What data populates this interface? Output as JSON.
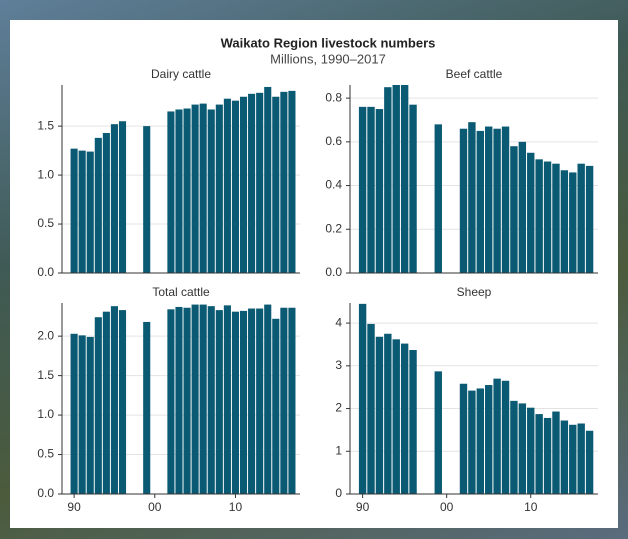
{
  "title": "Waikato Region livestock numbers",
  "subtitle": "Millions, 1990–2017",
  "chart_data": [
    {
      "type": "bar",
      "title": "Dairy cattle",
      "color": "#0b5a73",
      "x": [
        1990,
        1991,
        1992,
        1993,
        1994,
        1995,
        1996,
        1997,
        1998,
        1999,
        2000,
        2001,
        2002,
        2003,
        2004,
        2005,
        2006,
        2007,
        2008,
        2009,
        2010,
        2011,
        2012,
        2013,
        2014,
        2015,
        2016,
        2017
      ],
      "values": [
        1.27,
        1.25,
        1.24,
        1.38,
        1.43,
        1.52,
        1.55,
        null,
        null,
        1.5,
        null,
        null,
        1.65,
        1.67,
        1.68,
        1.72,
        1.73,
        1.67,
        1.72,
        1.78,
        1.76,
        1.8,
        1.83,
        1.84,
        1.9,
        1.8,
        1.85,
        1.86
      ],
      "xlim": [
        1988.5,
        2018
      ],
      "ylim": [
        0,
        1.92
      ],
      "yticks": [
        {
          "value": 0,
          "label": "0.0"
        },
        {
          "value": 0.5,
          "label": "0.5"
        },
        {
          "value": 1,
          "label": "1.0"
        },
        {
          "value": 1.5,
          "label": "1.5"
        }
      ],
      "grid": true
    },
    {
      "type": "bar",
      "title": "Beef cattle",
      "color": "#0b5a73",
      "x": [
        1990,
        1991,
        1992,
        1993,
        1994,
        1995,
        1996,
        1997,
        1998,
        1999,
        2000,
        2001,
        2002,
        2003,
        2004,
        2005,
        2006,
        2007,
        2008,
        2009,
        2010,
        2011,
        2012,
        2013,
        2014,
        2015,
        2016,
        2017
      ],
      "values": [
        0.76,
        0.76,
        0.75,
        0.85,
        0.86,
        0.86,
        0.77,
        null,
        null,
        0.68,
        null,
        null,
        0.66,
        0.69,
        0.65,
        0.67,
        0.66,
        0.67,
        0.58,
        0.6,
        0.55,
        0.52,
        0.51,
        0.5,
        0.47,
        0.46,
        0.5,
        0.49
      ],
      "xlim": [
        1988.5,
        2018
      ],
      "ylim": [
        0,
        0.86
      ],
      "yticks": [
        {
          "value": 0,
          "label": "0.0"
        },
        0.2,
        0.4,
        0.6,
        0.8
      ],
      "grid": true
    },
    {
      "type": "bar",
      "title": "Total cattle",
      "color": "#0b5a73",
      "x": [
        1990,
        1991,
        1992,
        1993,
        1994,
        1995,
        1996,
        1997,
        1998,
        1999,
        2000,
        2001,
        2002,
        2003,
        2004,
        2005,
        2006,
        2007,
        2008,
        2009,
        2010,
        2011,
        2012,
        2013,
        2014,
        2015,
        2016,
        2017
      ],
      "values": [
        2.03,
        2.01,
        1.99,
        2.24,
        2.31,
        2.38,
        2.33,
        null,
        null,
        2.18,
        null,
        null,
        2.34,
        2.37,
        2.36,
        2.4,
        2.4,
        2.38,
        2.33,
        2.39,
        2.31,
        2.32,
        2.35,
        2.35,
        2.4,
        2.22,
        2.36,
        2.36
      ],
      "xlim": [
        1988.5,
        2018
      ],
      "ylim": [
        0,
        2.42
      ],
      "xticks": [
        {
          "value": 1990,
          "label": "90"
        },
        {
          "value": 2000,
          "label": "00"
        },
        {
          "value": 2010,
          "label": "10"
        }
      ],
      "yticks": [
        {
          "value": 0,
          "label": "0.0"
        },
        0.5,
        {
          "value": 1,
          "label": "1.0"
        },
        1.5,
        {
          "value": 2,
          "label": "2.0"
        }
      ],
      "grid": true
    },
    {
      "type": "bar",
      "title": "Sheep",
      "color": "#0b5a73",
      "x": [
        1990,
        1991,
        1992,
        1993,
        1994,
        1995,
        1996,
        1997,
        1998,
        1999,
        2000,
        2001,
        2002,
        2003,
        2004,
        2005,
        2006,
        2007,
        2008,
        2009,
        2010,
        2011,
        2012,
        2013,
        2014,
        2015,
        2016,
        2017
      ],
      "values": [
        4.45,
        3.98,
        3.68,
        3.75,
        3.62,
        3.52,
        3.37,
        null,
        null,
        2.87,
        null,
        null,
        2.58,
        2.42,
        2.47,
        2.55,
        2.7,
        2.65,
        2.18,
        2.12,
        2.02,
        1.87,
        1.78,
        1.93,
        1.72,
        1.62,
        1.65,
        1.48
      ],
      "xlim": [
        1988.5,
        2018
      ],
      "ylim": [
        0,
        4.47
      ],
      "xticks": [
        {
          "value": 1990,
          "label": "90"
        },
        {
          "value": 2000,
          "label": "00"
        },
        {
          "value": 2010,
          "label": "10"
        }
      ],
      "yticks": [
        0,
        1,
        2,
        3,
        4
      ],
      "grid": true
    }
  ]
}
